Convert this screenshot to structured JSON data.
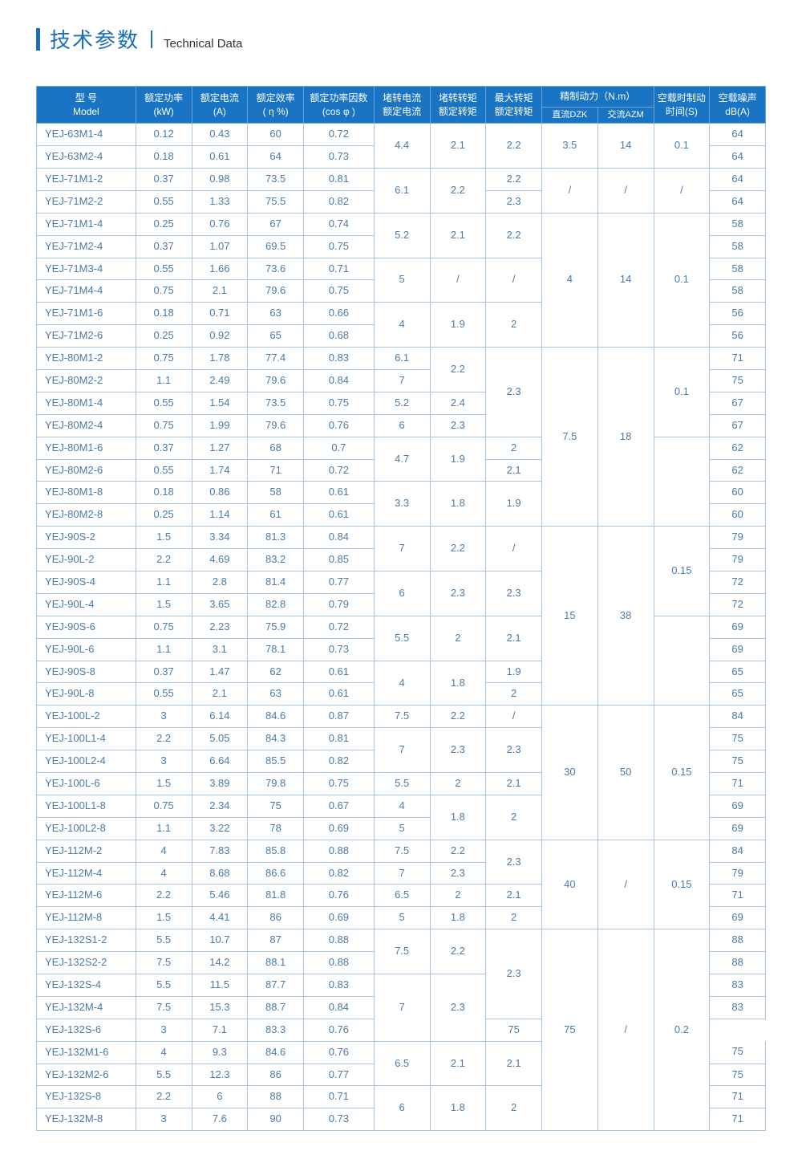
{
  "title": {
    "cn": "技术参数",
    "en": "Technical Data"
  },
  "headers": {
    "model": {
      "l1": "型 号",
      "l2": "Model"
    },
    "power": {
      "l1": "额定功率",
      "l2": "(kW)"
    },
    "current": {
      "l1": "额定电流",
      "l2": "(A)"
    },
    "eff": {
      "l1": "额定效率",
      "l2": "( η %)"
    },
    "pf": {
      "l1": "额定功率因数",
      "l2": "(cos φ )"
    },
    "lrc": {
      "l1": "堵转电流",
      "l2": "额定电流"
    },
    "lrt": {
      "l1": "堵转转矩",
      "l2": "额定转矩"
    },
    "maxt": {
      "l1": "最大转矩",
      "l2": "额定转矩"
    },
    "brake": {
      "l1": "精制动力（N.m）",
      "dzk": "直流DZK",
      "azm": "交流AZM"
    },
    "btime": {
      "l1": "空载时制动",
      "l2": "时间(S)"
    },
    "noise": {
      "l1": "空载噪声",
      "l2": "dB(A)"
    }
  },
  "colors": {
    "header_bg": "#1a74c4",
    "header_border": "#6ba3d4",
    "cell_border": "#a8c5e0",
    "text": "#4a7ba8",
    "accent": "#1a6fb8"
  }
}
